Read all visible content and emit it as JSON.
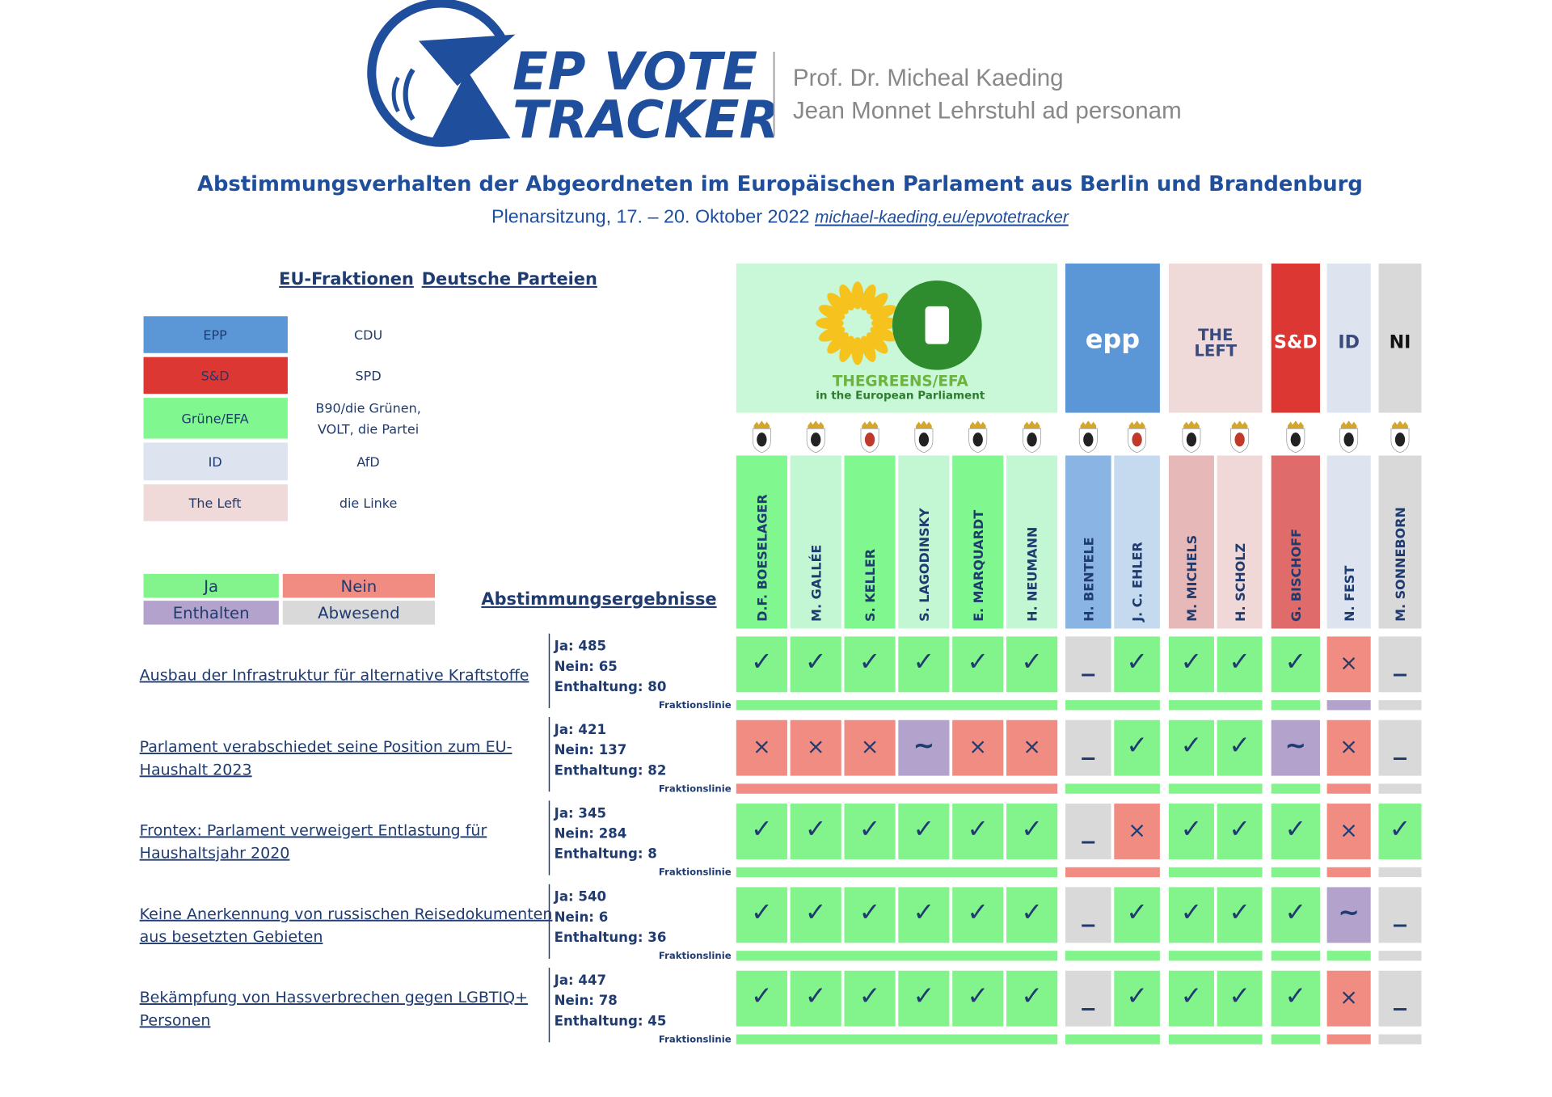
{
  "header": {
    "logo": [
      "EP VOTE",
      "TRACKER"
    ],
    "author": [
      "Prof. Dr. Micheal Kaeding",
      "Jean Monnet Lehrstuhl ad personam"
    ],
    "title": "Abstimmungsverhalten der Abgeordneten im Europäischen Parlament aus ",
    "title_bold": "Berlin und Brandenburg",
    "subtitle": "Plenarsitzung, 17. – 20. Oktober 2022",
    "link": "michael-kaeding.eu/epvotetracker"
  },
  "legend": {
    "headings": [
      "EU-Fraktionen",
      "Deutsche Parteien"
    ],
    "rows": [
      {
        "group": "EPP",
        "party": [
          "CDU"
        ],
        "color": "#5b97d6"
      },
      {
        "group": "S&D",
        "party": [
          "SPD"
        ],
        "color": "#dc3732"
      },
      {
        "group": "Grüne/EFA",
        "party": [
          "B90/die Grünen,",
          "VOLT, die Partei"
        ],
        "color": "#80f78f"
      },
      {
        "group": "ID",
        "party": [
          "AfD"
        ],
        "color": "#dde4ef"
      },
      {
        "group": "The Left",
        "party": [
          "die Linke"
        ],
        "color": "#efdad9"
      }
    ]
  },
  "vote_legend": [
    {
      "label": "Ja",
      "color": "#82f48b",
      "symbol": "✓"
    },
    {
      "label": "Nein",
      "color": "#f08c82",
      "symbol": "×"
    },
    {
      "label": "Enthalten",
      "color": "#b3a3cc",
      "symbol": "~"
    },
    {
      "label": "Abwesend",
      "color": "#d9d9d9",
      "symbol": "_"
    }
  ],
  "results_title": "Abstimmungsergebnisse",
  "line_label": "Fraktionslinie",
  "groups": [
    {
      "label": [
        "THEGREENS/EFA",
        "in the European Parliament"
      ],
      "color": "#c8f8d7",
      "members": [
        {
          "name": "D.F. BOESELAGER",
          "color": "#80f78f"
        },
        {
          "name": "M. GALLÉE",
          "color": "#c3f7d3"
        },
        {
          "name": "S. KELLER",
          "color": "#80f78f"
        },
        {
          "name": "S. LAGODINSKY",
          "color": "#c3f7d3"
        },
        {
          "name": "E. MARQUARDT",
          "color": "#80f78f"
        },
        {
          "name": "H. NEUMANN",
          "color": "#c3f7d3"
        }
      ]
    },
    {
      "label": [
        "epp"
      ],
      "color": "#5b97d6",
      "members": [
        {
          "name": "H. BENTELE",
          "color": "#8ab4e3"
        },
        {
          "name": "J. C. EHLER",
          "color": "#c5d9ef"
        }
      ]
    },
    {
      "label": [
        "THE",
        "LEFT"
      ],
      "color": "#efdad9",
      "members": [
        {
          "name": "M. MICHELS",
          "color": "#e6b8b8"
        },
        {
          "name": "H. SCHOLZ",
          "color": "#f0d8d8"
        }
      ]
    },
    {
      "label": [
        "S&D"
      ],
      "color": "#dc3732",
      "members": [
        {
          "name": "G. BISCHOFF",
          "color": "#e06b6b"
        }
      ]
    },
    {
      "label": [
        "ID"
      ],
      "color": "#dde4ef",
      "members": [
        {
          "name": "N. FEST",
          "color": "#dde4ef"
        }
      ]
    },
    {
      "label": [
        "NI"
      ],
      "color": "#d9d9d9",
      "members": [
        {
          "name": "M. SONNEBORN",
          "color": "#d9d9d9"
        }
      ]
    }
  ],
  "votes": [
    {
      "title": [
        "Ausbau der Infrastruktur für alternative Kraftstoffe"
      ],
      "results": [
        "Ja: 485",
        "Nein: 65",
        "Enthaltung: 80"
      ],
      "cells": [
        0,
        0,
        0,
        0,
        0,
        0,
        3,
        0,
        0,
        0,
        0,
        1,
        3
      ],
      "line": [
        0,
        0,
        0,
        0,
        2,
        3
      ]
    },
    {
      "title": [
        "Parlament verabschiedet seine Position zum EU-",
        "Haushalt 2023"
      ],
      "results": [
        "Ja: 421",
        "Nein: 137",
        "Enthaltung: 82"
      ],
      "cells": [
        1,
        1,
        1,
        2,
        1,
        1,
        3,
        0,
        0,
        0,
        2,
        1,
        3
      ],
      "line": [
        1,
        0,
        0,
        0,
        1,
        3
      ]
    },
    {
      "title": [
        "Frontex: Parlament verweigert Entlastung für",
        "Haushaltsjahr 2020"
      ],
      "results": [
        "Ja: 345",
        "Nein: 284",
        "Enthaltung: 8"
      ],
      "cells": [
        0,
        0,
        0,
        0,
        0,
        0,
        3,
        1,
        0,
        0,
        0,
        1,
        0
      ],
      "line": [
        0,
        1,
        0,
        0,
        1,
        3
      ]
    },
    {
      "title": [
        "Keine Anerkennung von russischen Reisedokumenten",
        "aus besetzten Gebieten"
      ],
      "results": [
        "Ja: 540",
        "Nein: 6",
        "Enthaltung: 36"
      ],
      "cells": [
        0,
        0,
        0,
        0,
        0,
        0,
        3,
        0,
        0,
        0,
        0,
        2,
        3
      ],
      "line": [
        0,
        0,
        0,
        0,
        0,
        3
      ]
    },
    {
      "title": [
        "Bekämpfung von Hassverbrechen gegen LGBTIQ+",
        "Personen"
      ],
      "results": [
        "Ja: 447",
        "Nein: 78",
        "Enthaltung: 45"
      ],
      "cells": [
        0,
        0,
        0,
        0,
        0,
        0,
        3,
        0,
        0,
        0,
        0,
        1,
        3
      ],
      "line": [
        0,
        0,
        0,
        0,
        1,
        3
      ]
    }
  ]
}
